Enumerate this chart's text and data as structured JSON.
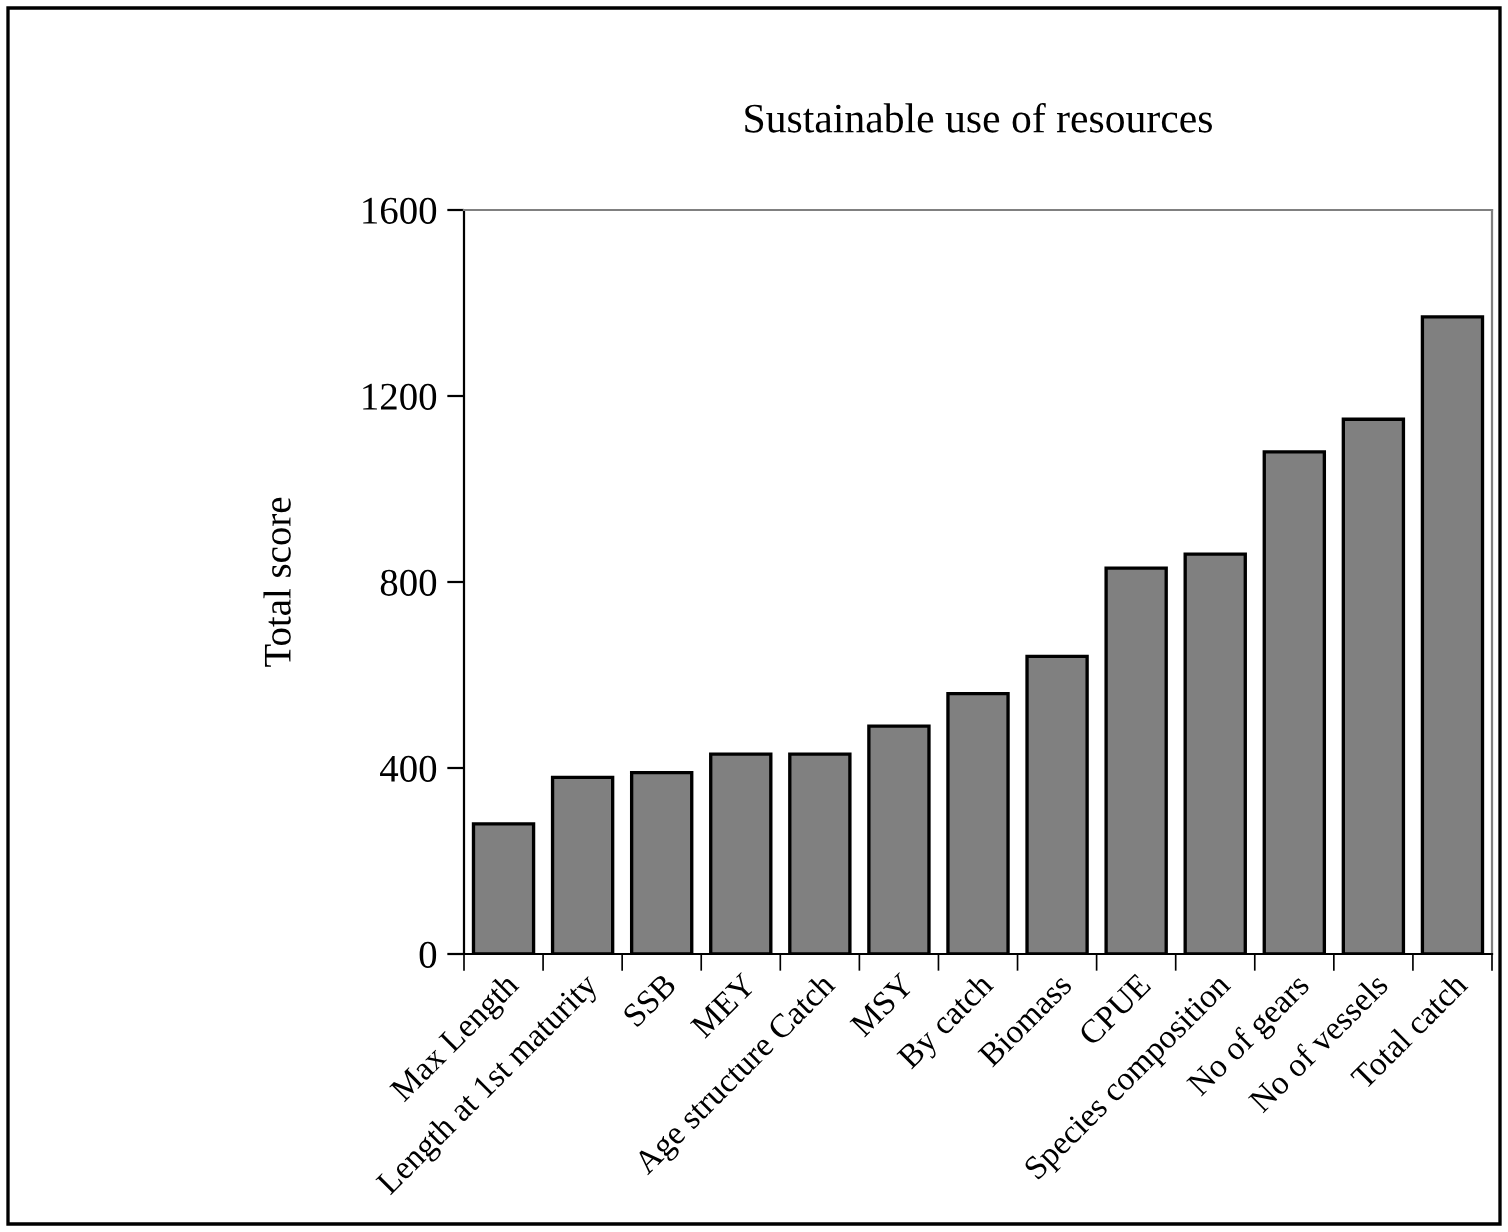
{
  "chart_data": {
    "type": "bar",
    "title": "Sustainable use of resources",
    "ylabel": "Total score",
    "categories": [
      "Max Length",
      "Length at 1st maturity",
      "SSB",
      "MEY",
      "Age structure Catch",
      "MSY",
      "By catch",
      "Biomass",
      "CPUE",
      "Species composition",
      "No of gears",
      "No of vessels",
      "Total catch"
    ],
    "values": [
      280,
      380,
      390,
      430,
      430,
      490,
      560,
      640,
      830,
      860,
      1080,
      1150,
      1370
    ],
    "color": "#808080",
    "ylim": [
      0,
      1600
    ],
    "yticks": [
      0,
      400,
      800,
      1200,
      1600
    ],
    "grid": false,
    "legend": false
  }
}
